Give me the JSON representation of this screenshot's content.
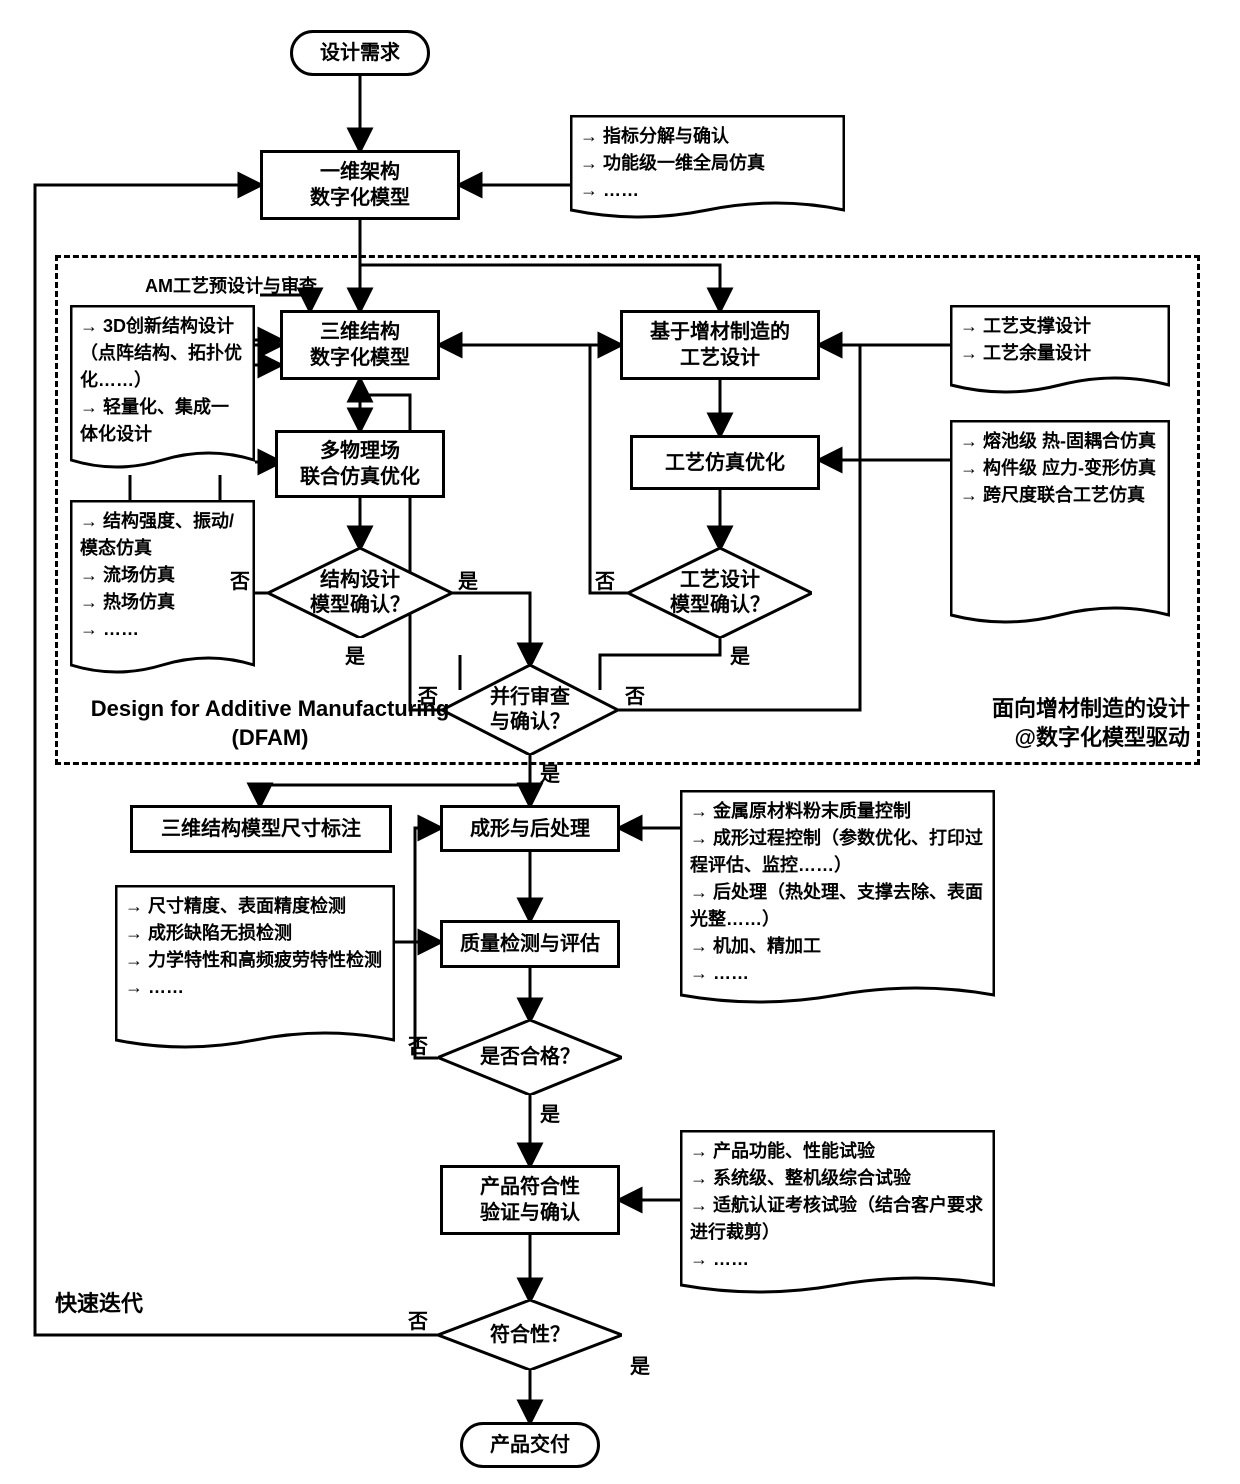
{
  "colors": {
    "stroke": "#000000",
    "bg": "#ffffff"
  },
  "strokeWidth": 3,
  "font": {
    "nodeSize": 20,
    "docSize": 18,
    "labelSize": 22,
    "edgeSize": 20,
    "weight": "bold"
  },
  "terminators": {
    "start": "设计需求",
    "end": "产品交付"
  },
  "processes": {
    "oneD": "一维架构\n数字化模型",
    "threeD": "三维结构\n数字化模型",
    "multiPhys": "多物理场\n联合仿真优化",
    "procDesign": "基于增材制造的\n工艺设计",
    "procSim": "工艺仿真优化",
    "dimAnnot": "三维结构模型尺寸标注",
    "forming": "成形与后处理",
    "quality": "质量检测与评估",
    "compliance": "产品符合性\n验证与确认"
  },
  "decisions": {
    "structConfirm": "结构设计\n模型确认？",
    "procConfirm": "工艺设计\n模型确认？",
    "parallelConfirm": "并行审查\n与确认？",
    "qualified": "是否合格？",
    "compliant": "符合性？"
  },
  "docs": {
    "oneD_notes": [
      "指标分解与确认",
      "功能级一维全局仿真",
      "……"
    ],
    "threeD_left_notes": [
      "3D创新结构设计（点阵结构、拓扑优化……）",
      "轻量化、集成一体化设计"
    ],
    "multiPhys_notes": [
      "结构强度、振动/模态仿真",
      "流场仿真",
      "热场仿真",
      "……"
    ],
    "procDesign_notes": [
      "工艺支撑设计",
      "工艺余量设计"
    ],
    "procSim_notes": [
      "熔池级  热-固耦合仿真",
      "构件级  应力-变形仿真",
      "跨尺度联合工艺仿真"
    ],
    "forming_notes": [
      "金属原材料粉末质量控制",
      "成形过程控制（参数优化、打印过程评估、监控……）",
      "后处理（热处理、支撑去除、表面光整……）",
      "机加、精加工",
      "……"
    ],
    "quality_notes": [
      "尺寸精度、表面精度检测",
      "成形缺陷无损检测",
      "力学特性和高频疲劳特性检测",
      "……"
    ],
    "compliance_notes": [
      "产品功能、性能试验",
      "系统级、整机级综合试验",
      "适航认证考核试验（结合客户要求进行裁剪）",
      "……"
    ]
  },
  "freeLabels": {
    "amPreDesign": "AM工艺预设计与审查",
    "dfam_en": "Design for Additive Manufacturing\n(DFAM)",
    "dfam_cn": "面向增材制造的设计\n@数字化模型驱动",
    "fastIter": "快速迭代"
  },
  "edgeLabels": {
    "yes": "是",
    "no": "否"
  }
}
